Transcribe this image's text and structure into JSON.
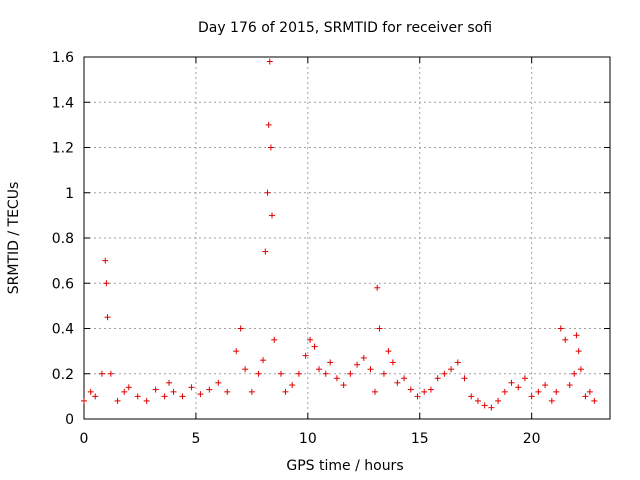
{
  "chart_data": {
    "type": "scatter",
    "title": "Day 176 of 2015, SRMTID for receiver sofi",
    "xlabel": "GPS time / hours",
    "ylabel": "SRMTID / TECUs",
    "xlim": [
      0,
      23.5
    ],
    "ylim": [
      0,
      1.6
    ],
    "xticks": [
      0,
      5,
      10,
      15,
      20
    ],
    "xtick_labels": [
      "0",
      "5",
      "10",
      "15",
      "20"
    ],
    "yticks": [
      0,
      0.2,
      0.4,
      0.6,
      0.8,
      1,
      1.2,
      1.4,
      1.6
    ],
    "ytick_labels": [
      "0",
      "0.2",
      "0.4",
      "0.6",
      "0.8",
      "1",
      "1.2",
      "1.4",
      "1.6"
    ],
    "grid": true,
    "marker": "+",
    "marker_color": "#e00000",
    "series": [
      {
        "name": "SRMTID",
        "x": [
          0.0,
          0.3,
          0.5,
          0.8,
          0.95,
          1.0,
          1.05,
          1.2,
          1.5,
          1.8,
          2.0,
          2.4,
          2.8,
          3.2,
          3.6,
          3.8,
          4.0,
          4.4,
          4.8,
          5.2,
          5.6,
          6.0,
          6.4,
          6.8,
          7.0,
          7.2,
          7.5,
          7.8,
          8.0,
          8.1,
          8.2,
          8.25,
          8.3,
          8.35,
          8.4,
          8.5,
          8.8,
          9.0,
          9.3,
          9.6,
          9.9,
          10.1,
          10.3,
          10.5,
          10.8,
          11.0,
          11.3,
          11.6,
          11.9,
          12.2,
          12.5,
          12.8,
          13.0,
          13.1,
          13.2,
          13.4,
          13.6,
          13.8,
          14.0,
          14.3,
          14.6,
          14.9,
          15.2,
          15.5,
          15.8,
          16.1,
          16.4,
          16.7,
          17.0,
          17.3,
          17.6,
          17.9,
          18.2,
          18.5,
          18.8,
          19.1,
          19.4,
          19.7,
          20.0,
          20.3,
          20.6,
          20.9,
          21.1,
          21.3,
          21.5,
          21.7,
          21.9,
          22.0,
          22.1,
          22.2,
          22.4,
          22.6,
          22.8
        ],
        "y": [
          0.08,
          0.12,
          0.1,
          0.2,
          0.7,
          0.6,
          0.45,
          0.2,
          0.08,
          0.12,
          0.14,
          0.1,
          0.08,
          0.13,
          0.1,
          0.16,
          0.12,
          0.1,
          0.14,
          0.11,
          0.13,
          0.16,
          0.12,
          0.3,
          0.4,
          0.22,
          0.12,
          0.2,
          0.26,
          0.74,
          1.0,
          1.3,
          1.58,
          1.2,
          0.9,
          0.35,
          0.2,
          0.12,
          0.15,
          0.2,
          0.28,
          0.35,
          0.32,
          0.22,
          0.2,
          0.25,
          0.18,
          0.15,
          0.2,
          0.24,
          0.27,
          0.22,
          0.12,
          0.58,
          0.4,
          0.2,
          0.3,
          0.25,
          0.16,
          0.18,
          0.13,
          0.1,
          0.12,
          0.13,
          0.18,
          0.2,
          0.22,
          0.25,
          0.18,
          0.1,
          0.08,
          0.06,
          0.05,
          0.08,
          0.12,
          0.16,
          0.14,
          0.18,
          0.1,
          0.12,
          0.15,
          0.08,
          0.12,
          0.4,
          0.35,
          0.15,
          0.2,
          0.37,
          0.3,
          0.22,
          0.1,
          0.12,
          0.08
        ]
      }
    ]
  }
}
